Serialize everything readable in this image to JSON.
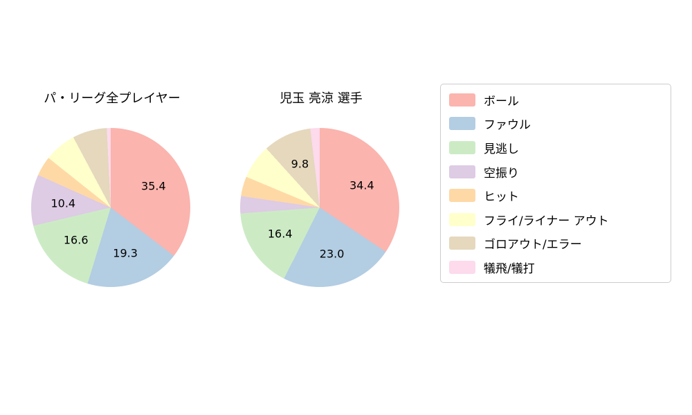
{
  "chart_data": [
    {
      "type": "pie",
      "title": "パ・リーグ全プレイヤー",
      "labels": [
        "ボール",
        "ファウル",
        "見逃し",
        "空振り",
        "ヒット",
        "フライ/ライナー アウト",
        "ゴロアウト/エラー",
        "犠飛/犠打"
      ],
      "values": [
        35.4,
        19.3,
        16.6,
        10.4,
        4.0,
        6.5,
        7.0,
        0.8
      ],
      "value_labels": [
        "35.4",
        "19.3",
        "16.6",
        "10.4",
        "",
        "",
        "",
        ""
      ],
      "colors": [
        "#fbb4ae",
        "#b3cde3",
        "#ccebc5",
        "#decbe4",
        "#fed9a6",
        "#ffffcc",
        "#e5d8bd",
        "#fddaec"
      ],
      "start_angle": "top",
      "direction": "clockwise",
      "label_radius_fraction": 0.6
    },
    {
      "type": "pie",
      "title": "児玉 亮涼  選手",
      "labels": [
        "ボール",
        "ファウル",
        "見逃し",
        "空振り",
        "ヒット",
        "フライ/ライナー アウト",
        "ゴロアウト/エラー",
        "犠飛/犠打"
      ],
      "values": [
        34.4,
        23.0,
        16.4,
        3.5,
        4.0,
        7.0,
        9.8,
        1.9
      ],
      "value_labels": [
        "34.4",
        "23.0",
        "16.4",
        "",
        "",
        "",
        "9.8",
        ""
      ],
      "colors": [
        "#fbb4ae",
        "#b3cde3",
        "#ccebc5",
        "#decbe4",
        "#fed9a6",
        "#ffffcc",
        "#e5d8bd",
        "#fddaec"
      ],
      "start_angle": "top",
      "direction": "clockwise",
      "label_radius_fraction": 0.6
    }
  ],
  "legend": {
    "position": "right",
    "items": [
      {
        "label": "ボール",
        "color": "#fbb4ae"
      },
      {
        "label": "ファウル",
        "color": "#b3cde3"
      },
      {
        "label": "見逃し",
        "color": "#ccebc5"
      },
      {
        "label": "空振り",
        "color": "#decbe4"
      },
      {
        "label": "ヒット",
        "color": "#fed9a6"
      },
      {
        "label": "フライ/ライナー アウト",
        "color": "#ffffcc"
      },
      {
        "label": "ゴロアウト/エラー",
        "color": "#e5d8bd"
      },
      {
        "label": "犠飛/犠打",
        "color": "#fddaec"
      }
    ]
  }
}
